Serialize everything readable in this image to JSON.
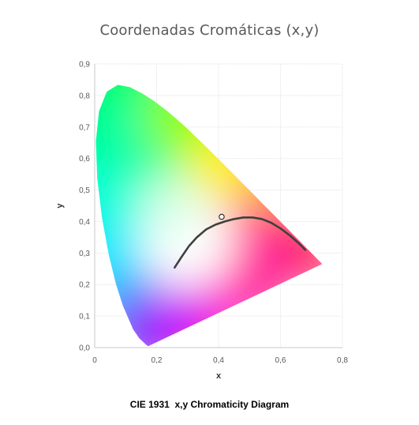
{
  "chart_data": {
    "type": "scatter",
    "title": "Coordenadas  Cromáticas (x,y)",
    "caption": "CIE 1931  x,y Chromaticity Diagram",
    "xlabel": "x",
    "ylabel": "y",
    "xlim": [
      0,
      0.8
    ],
    "ylim": [
      0,
      0.9
    ],
    "xticks": [
      "0",
      "0,2",
      "0,4",
      "0,6",
      "0,8"
    ],
    "yticks": [
      "0,0",
      "0,1",
      "0,2",
      "0,3",
      "0,4",
      "0,5",
      "0,6",
      "0,7",
      "0,8",
      "0,9"
    ],
    "grid": true,
    "spectral_locus": [
      [
        0.1741,
        0.005
      ],
      [
        0.1738,
        0.0049
      ],
      [
        0.1726,
        0.0048
      ],
      [
        0.1714,
        0.0051
      ],
      [
        0.1689,
        0.0069
      ],
      [
        0.1644,
        0.0109
      ],
      [
        0.1566,
        0.0177
      ],
      [
        0.144,
        0.0297
      ],
      [
        0.1241,
        0.0578
      ],
      [
        0.0913,
        0.1327
      ],
      [
        0.0687,
        0.2007
      ],
      [
        0.0454,
        0.295
      ],
      [
        0.0235,
        0.4127
      ],
      [
        0.0082,
        0.5384
      ],
      [
        0.0039,
        0.6548
      ],
      [
        0.0139,
        0.7502
      ],
      [
        0.0389,
        0.812
      ],
      [
        0.0743,
        0.8338
      ],
      [
        0.1142,
        0.8262
      ],
      [
        0.1547,
        0.8059
      ],
      [
        0.1929,
        0.7816
      ],
      [
        0.2296,
        0.7543
      ],
      [
        0.2658,
        0.7243
      ],
      [
        0.3016,
        0.6923
      ],
      [
        0.3373,
        0.6589
      ],
      [
        0.3731,
        0.6245
      ],
      [
        0.4087,
        0.5896
      ],
      [
        0.4441,
        0.5547
      ],
      [
        0.4788,
        0.5202
      ],
      [
        0.5125,
        0.4866
      ],
      [
        0.5448,
        0.4544
      ],
      [
        0.5752,
        0.4242
      ],
      [
        0.6029,
        0.3965
      ],
      [
        0.627,
        0.3725
      ],
      [
        0.6482,
        0.3514
      ],
      [
        0.6658,
        0.334
      ],
      [
        0.6801,
        0.3197
      ],
      [
        0.6915,
        0.3083
      ],
      [
        0.7006,
        0.2993
      ],
      [
        0.7079,
        0.292
      ],
      [
        0.714,
        0.2859
      ],
      [
        0.719,
        0.2809
      ],
      [
        0.723,
        0.277
      ],
      [
        0.726,
        0.274
      ],
      [
        0.7283,
        0.2717
      ],
      [
        0.73,
        0.27
      ],
      [
        0.7347,
        0.2653
      ]
    ],
    "series": [
      {
        "type": "line",
        "color": "#404040",
        "points": [
          [
            0.258,
            0.254
          ],
          [
            0.28,
            0.287
          ],
          [
            0.305,
            0.323
          ],
          [
            0.33,
            0.35
          ],
          [
            0.36,
            0.375
          ],
          [
            0.39,
            0.39
          ],
          [
            0.42,
            0.4
          ],
          [
            0.45,
            0.408
          ],
          [
            0.48,
            0.413
          ],
          [
            0.51,
            0.413
          ],
          [
            0.54,
            0.408
          ],
          [
            0.57,
            0.396
          ],
          [
            0.6,
            0.378
          ],
          [
            0.63,
            0.356
          ],
          [
            0.66,
            0.33
          ],
          [
            0.68,
            0.31
          ]
        ]
      },
      {
        "type": "point",
        "color": "#ffffff",
        "edge_color": "#333333",
        "points": [
          [
            0.41,
            0.415
          ]
        ]
      }
    ]
  }
}
